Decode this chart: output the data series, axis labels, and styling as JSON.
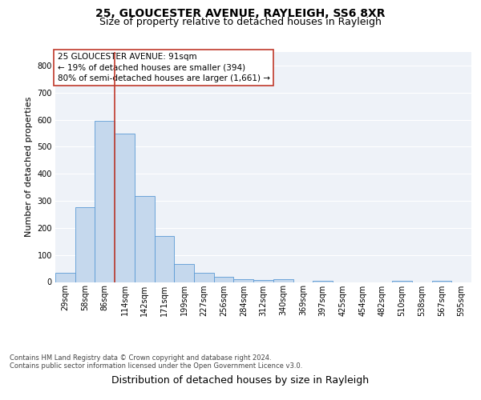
{
  "title_line1": "25, GLOUCESTER AVENUE, RAYLEIGH, SS6 8XR",
  "title_line2": "Size of property relative to detached houses in Rayleigh",
  "xlabel": "Distribution of detached houses by size in Rayleigh",
  "ylabel": "Number of detached properties",
  "bar_color": "#c5d8ed",
  "bar_edge_color": "#5b9bd5",
  "categories": [
    "29sqm",
    "58sqm",
    "86sqm",
    "114sqm",
    "142sqm",
    "171sqm",
    "199sqm",
    "227sqm",
    "256sqm",
    "284sqm",
    "312sqm",
    "340sqm",
    "369sqm",
    "397sqm",
    "425sqm",
    "454sqm",
    "482sqm",
    "510sqm",
    "538sqm",
    "567sqm",
    "595sqm"
  ],
  "values": [
    33,
    277,
    596,
    549,
    319,
    169,
    68,
    33,
    20,
    10,
    6,
    10,
    0,
    5,
    0,
    0,
    0,
    5,
    0,
    5,
    0
  ],
  "ylim": [
    0,
    850
  ],
  "yticks": [
    0,
    100,
    200,
    300,
    400,
    500,
    600,
    700,
    800
  ],
  "vline_x_index": 2,
  "vline_color": "#c0392b",
  "annotation_text": "25 GLOUCESTER AVENUE: 91sqm\n← 19% of detached houses are smaller (394)\n80% of semi-detached houses are larger (1,661) →",
  "annotation_box_color": "#ffffff",
  "annotation_box_edge": "#c0392b",
  "footer_text": "Contains HM Land Registry data © Crown copyright and database right 2024.\nContains public sector information licensed under the Open Government Licence v3.0.",
  "background_color": "#eef2f8",
  "grid_color": "#ffffff",
  "title_fontsize": 10,
  "subtitle_fontsize": 9,
  "tick_fontsize": 7,
  "xlabel_fontsize": 9,
  "ylabel_fontsize": 8,
  "annotation_fontsize": 7.5,
  "footer_fontsize": 6
}
